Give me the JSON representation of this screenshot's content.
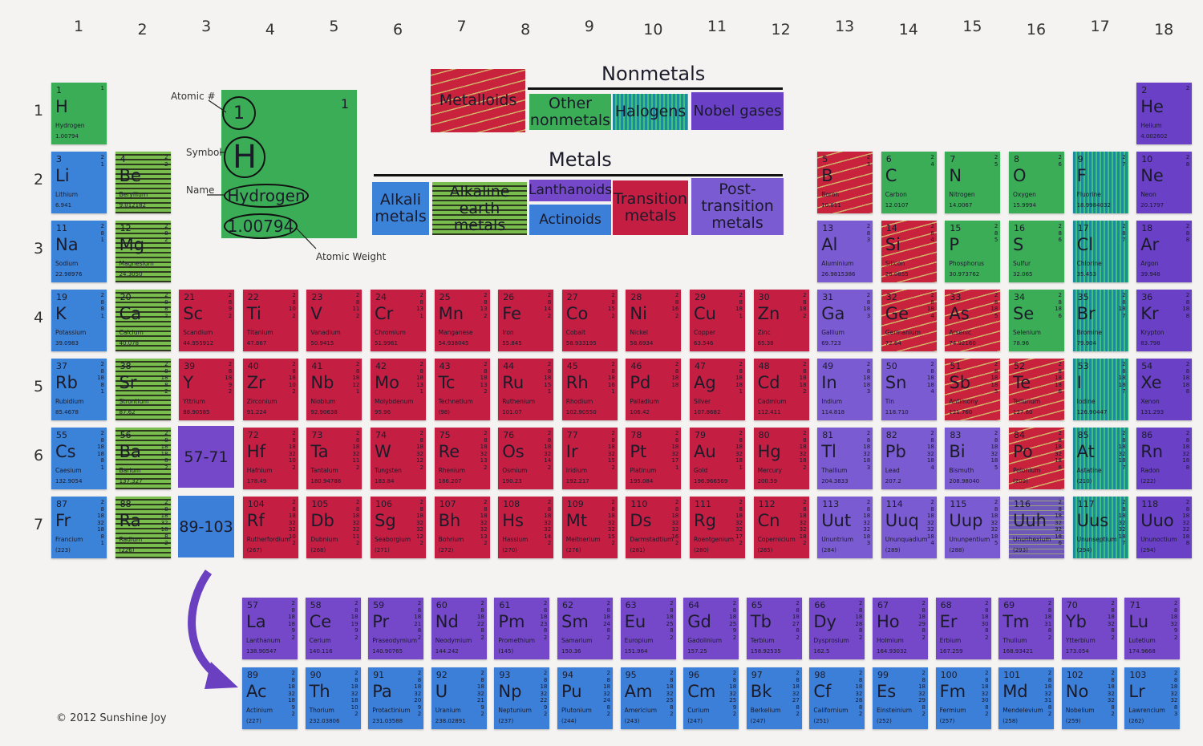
{
  "groups": [
    "1",
    "2",
    "3",
    "4",
    "5",
    "6",
    "7",
    "8",
    "9",
    "10",
    "11",
    "12",
    "13",
    "14",
    "15",
    "16",
    "17",
    "18"
  ],
  "periods": [
    "1",
    "2",
    "3",
    "4",
    "5",
    "6",
    "7"
  ],
  "legend": {
    "nonmetals_title": "Nonmetals",
    "metals_title": "Metals",
    "metalloids": "Metalloids",
    "other_nonmetals": "Other nonmetals",
    "halogens": "Halogens",
    "noble_gases": "Nobel gases",
    "alkali": "Alkali metals",
    "alkaline_earth": "Alkaline earth metals",
    "lanthanoids": "Lanthanoids",
    "actinoids": "Actinoids",
    "transition": "Transition metals",
    "post_transition": "Post-transition metals"
  },
  "key": {
    "atomic_label": "Atomic #",
    "symbol_label": "Symbol",
    "name_label": "Name",
    "weight_label": "Atomic Weight",
    "number": "1",
    "shell": "1",
    "symbol": "H",
    "name": "Hydrogen",
    "weight": "1.00794"
  },
  "placeholders": {
    "lanthanoids": "57-71",
    "actinoids": "89-103"
  },
  "copyright": "© 2012 Sunshine Joy",
  "colors": {
    "alkali": "#3b83d8",
    "transition": "#c41f43",
    "post_transition": "#7b5bd1",
    "noble": "#6a40c6",
    "other_nonmetal": "#3cad57",
    "lanthanoid": "#7548c9",
    "actinoid": "#3c7fd8"
  },
  "elements": [
    [
      1,
      "H",
      "Hydrogen",
      "1.00794",
      "1",
      "onm",
      1,
      1
    ],
    [
      2,
      "He",
      "Helium",
      "4.002602",
      "2",
      "ng",
      1,
      18
    ],
    [
      3,
      "Li",
      "Lithium",
      "6.941",
      "2 1",
      "alk",
      2,
      1
    ],
    [
      4,
      "Be",
      "Beryllium",
      "9.012182",
      "2 2",
      "ae",
      2,
      2
    ],
    [
      5,
      "B",
      "Boron",
      "10.811",
      "2 3",
      "mtl",
      2,
      13
    ],
    [
      6,
      "C",
      "Carbon",
      "12.0107",
      "2 4",
      "onm",
      2,
      14
    ],
    [
      7,
      "N",
      "Nitrogen",
      "14.0067",
      "2 5",
      "onm",
      2,
      15
    ],
    [
      8,
      "O",
      "Oxygen",
      "15.9994",
      "2 6",
      "onm",
      2,
      16
    ],
    [
      9,
      "F",
      "Fluorine",
      "18.9984032",
      "2 7",
      "hal",
      2,
      17
    ],
    [
      10,
      "Ne",
      "Neon",
      "20.1797",
      "2 8",
      "ng",
      2,
      18
    ],
    [
      11,
      "Na",
      "Sodium",
      "22.98976",
      "2 8 1",
      "alk",
      3,
      1
    ],
    [
      12,
      "Mg",
      "Magnesium",
      "24.3050",
      "2 8 2",
      "ae",
      3,
      2
    ],
    [
      13,
      "Al",
      "Aluminium",
      "26.9815386",
      "2 8 3",
      "ptm",
      3,
      13
    ],
    [
      14,
      "Si",
      "Silicon",
      "28.0855",
      "2 8 4",
      "mtl",
      3,
      14
    ],
    [
      15,
      "P",
      "Phosphorus",
      "30.973762",
      "2 8 5",
      "onm",
      3,
      15
    ],
    [
      16,
      "S",
      "Sulfur",
      "32.065",
      "2 8 6",
      "onm",
      3,
      16
    ],
    [
      17,
      "Cl",
      "Chlorine",
      "35.453",
      "2 8 7",
      "hal",
      3,
      17
    ],
    [
      18,
      "Ar",
      "Argon",
      "39.948",
      "2 8 8",
      "ng",
      3,
      18
    ],
    [
      19,
      "K",
      "Potassium",
      "39.0983",
      "2 8 8 1",
      "alk",
      4,
      1
    ],
    [
      20,
      "Ca",
      "Calcium",
      "40.078",
      "2 8 8 2",
      "ae",
      4,
      2
    ],
    [
      21,
      "Sc",
      "Scandium",
      "44.955912",
      "2 8 9 2",
      "tm",
      4,
      3
    ],
    [
      22,
      "Ti",
      "Titanium",
      "47.867",
      "2 8 10 2",
      "tm",
      4,
      4
    ],
    [
      23,
      "V",
      "Vanadium",
      "50.9415",
      "2 8 11 2",
      "tm",
      4,
      5
    ],
    [
      24,
      "Cr",
      "Chromium",
      "51.9961",
      "2 8 13 1",
      "tm",
      4,
      6
    ],
    [
      25,
      "Mn",
      "Manganese",
      "54.938045",
      "2 8 13 2",
      "tm",
      4,
      7
    ],
    [
      26,
      "Fe",
      "Iron",
      "55.845",
      "2 8 14 2",
      "tm",
      4,
      8
    ],
    [
      27,
      "Co",
      "Cobalt",
      "58.933195",
      "2 8 15 2",
      "tm",
      4,
      9
    ],
    [
      28,
      "Ni",
      "Nickel",
      "58.6934",
      "2 8 16 2",
      "tm",
      4,
      10
    ],
    [
      29,
      "Cu",
      "Copper",
      "63.546",
      "2 8 18 1",
      "tm",
      4,
      11
    ],
    [
      30,
      "Zn",
      "Zinc",
      "65.38",
      "2 8 18 2",
      "tm",
      4,
      12
    ],
    [
      31,
      "Ga",
      "Gallium",
      "69.723",
      "2 8 18 3",
      "ptm",
      4,
      13
    ],
    [
      32,
      "Ge",
      "Germanium",
      "72.64",
      "2 8 18 4",
      "mtl",
      4,
      14
    ],
    [
      33,
      "As",
      "Arsenic",
      "74.92160",
      "2 8 18 5",
      "mtl",
      4,
      15
    ],
    [
      34,
      "Se",
      "Selenium",
      "78.96",
      "2 8 18 6",
      "onm",
      4,
      16
    ],
    [
      35,
      "Br",
      "Bromine",
      "79.904",
      "2 8 18 7",
      "hal",
      4,
      17
    ],
    [
      36,
      "Kr",
      "Krypton",
      "83.798",
      "2 8 18 8",
      "ng",
      4,
      18
    ],
    [
      37,
      "Rb",
      "Rubidium",
      "85.4678",
      "2 8 18 8 1",
      "alk",
      5,
      1
    ],
    [
      38,
      "Sr",
      "Strontium",
      "87.62",
      "2 8 18 8 2",
      "ae",
      5,
      2
    ],
    [
      39,
      "Y",
      "Yttrium",
      "88.90585",
      "2 8 18 9 2",
      "tm",
      5,
      3
    ],
    [
      40,
      "Zr",
      "Zirconium",
      "91.224",
      "2 8 18 10 2",
      "tm",
      5,
      4
    ],
    [
      41,
      "Nb",
      "Niobium",
      "92.90638",
      "2 8 18 12 1",
      "tm",
      5,
      5
    ],
    [
      42,
      "Mo",
      "Molybdenum",
      "95.96",
      "2 8 18 13 1",
      "tm",
      5,
      6
    ],
    [
      43,
      "Tc",
      "Technetium",
      "(98)",
      "2 8 18 13 2",
      "tm",
      5,
      7
    ],
    [
      44,
      "Ru",
      "Ruthenium",
      "101.07",
      "2 8 18 15 1",
      "tm",
      5,
      8
    ],
    [
      45,
      "Rh",
      "Rhodium",
      "102.90550",
      "2 8 18 16 1",
      "tm",
      5,
      9
    ],
    [
      46,
      "Pd",
      "Palladium",
      "106.42",
      "2 8 18 18",
      "tm",
      5,
      10
    ],
    [
      47,
      "Ag",
      "Silver",
      "107.8682",
      "2 8 18 18 1",
      "tm",
      5,
      11
    ],
    [
      48,
      "Cd",
      "Cadmium",
      "112.411",
      "2 8 18 18 2",
      "tm",
      5,
      12
    ],
    [
      49,
      "In",
      "Indium",
      "114.818",
      "2 8 18 18 3",
      "ptm",
      5,
      13
    ],
    [
      50,
      "Sn",
      "Tin",
      "118.710",
      "2 8 18 18 4",
      "ptm",
      5,
      14
    ],
    [
      51,
      "Sb",
      "Antimony",
      "121.760",
      "2 8 18 18 5",
      "mtl",
      5,
      15
    ],
    [
      52,
      "Te",
      "Tellurium",
      "127.60",
      "2 8 18 18 6",
      "mtl",
      5,
      16
    ],
    [
      53,
      "I",
      "Iodine",
      "126.90447",
      "2 8 18 18 7",
      "hal",
      5,
      17
    ],
    [
      54,
      "Xe",
      "Xenon",
      "131.293",
      "2 8 18 18 8",
      "ng",
      5,
      18
    ],
    [
      55,
      "Cs",
      "Caesium",
      "132.9054",
      "2 8 18 18 8 1",
      "alk",
      6,
      1
    ],
    [
      56,
      "Ba",
      "Barium",
      "137.327",
      "2 8 18 18 8 2",
      "ae",
      6,
      2
    ],
    [
      72,
      "Hf",
      "Hafnium",
      "178.49",
      "2 8 18 32 10 2",
      "tm",
      6,
      4
    ],
    [
      73,
      "Ta",
      "Tantalum",
      "180.94788",
      "2 8 18 32 11 2",
      "tm",
      6,
      5
    ],
    [
      74,
      "W",
      "Tungsten",
      "183.84",
      "2 8 18 32 12 2",
      "tm",
      6,
      6
    ],
    [
      75,
      "Re",
      "Rhenium",
      "186.207",
      "2 8 18 32 13 2",
      "tm",
      6,
      7
    ],
    [
      76,
      "Os",
      "Osmium",
      "190.23",
      "2 8 18 32 14 2",
      "tm",
      6,
      8
    ],
    [
      77,
      "Ir",
      "Iridium",
      "192.217",
      "2 8 18 32 15 2",
      "tm",
      6,
      9
    ],
    [
      78,
      "Pt",
      "Platinum",
      "195.084",
      "2 8 18 32 17 1",
      "tm",
      6,
      10
    ],
    [
      79,
      "Au",
      "Gold",
      "196.966569",
      "2 8 18 32 18 1",
      "tm",
      6,
      11
    ],
    [
      80,
      "Hg",
      "Mercury",
      "200.59",
      "2 8 18 32 18 2",
      "tm",
      6,
      12
    ],
    [
      81,
      "Tl",
      "Thallium",
      "204.3833",
      "2 8 18 32 18 3",
      "ptm",
      6,
      13
    ],
    [
      82,
      "Pb",
      "Lead",
      "207.2",
      "2 8 18 32 18 4",
      "ptm",
      6,
      14
    ],
    [
      83,
      "Bi",
      "Bismuth",
      "208.98040",
      "2 8 18 32 18 5",
      "ptm",
      6,
      15
    ],
    [
      84,
      "Po",
      "Polonium",
      "(209)",
      "2 8 18 32 18 6",
      "mtl",
      6,
      16
    ],
    [
      85,
      "At",
      "Astatine",
      "(210)",
      "2 8 18 32 18 7",
      "hal",
      6,
      17
    ],
    [
      86,
      "Rn",
      "Radon",
      "(222)",
      "2 8 18 32 18 8",
      "ng",
      6,
      18
    ],
    [
      87,
      "Fr",
      "Francium",
      "(223)",
      "2 8 18 32 18 8 1",
      "alk",
      7,
      1
    ],
    [
      88,
      "Ra",
      "Radium",
      "(226)",
      "2 8 18 32 18 8 2",
      "ae",
      7,
      2
    ],
    [
      104,
      "Rf",
      "Rutherfordium",
      "(267)",
      "2 8 18 32 32 10 2",
      "tm",
      7,
      4
    ],
    [
      105,
      "Db",
      "Dubnium",
      "(268)",
      "2 8 18 32 32 11 2",
      "tm",
      7,
      5
    ],
    [
      106,
      "Sg",
      "Seaborgium",
      "(271)",
      "2 8 18 32 32 12 2",
      "tm",
      7,
      6
    ],
    [
      107,
      "Bh",
      "Bohrium",
      "(272)",
      "2 8 18 32 32 13 2",
      "tm",
      7,
      7
    ],
    [
      108,
      "Hs",
      "Hassium",
      "(270)",
      "2 8 18 32 32 14 2",
      "tm",
      7,
      8
    ],
    [
      109,
      "Mt",
      "Meitnerium",
      "(276)",
      "2 8 18 32 32 15 2",
      "tm",
      7,
      9
    ],
    [
      110,
      "Ds",
      "Darmstadtium",
      "(281)",
      "2 8 18 32 32 16 2",
      "tm",
      7,
      10
    ],
    [
      111,
      "Rg",
      "Roentgenium",
      "(280)",
      "2 8 18 32 32 17 2",
      "tm",
      7,
      11
    ],
    [
      112,
      "Cn",
      "Copernicium",
      "(285)",
      "2 8 18 32 32 18 2",
      "tm",
      7,
      12
    ],
    [
      113,
      "Uut",
      "Ununtrium",
      "(284)",
      "2 8 18 32 32 18 3",
      "ptm",
      7,
      13
    ],
    [
      114,
      "Uuq",
      "Ununquadium",
      "(289)",
      "2 8 18 32 32 18 4",
      "ptm",
      7,
      14
    ],
    [
      115,
      "Uup",
      "Ununpentium",
      "(288)",
      "2 8 18 32 32 18 5",
      "ptm",
      7,
      15
    ],
    [
      116,
      "Uuh",
      "Ununhexium",
      "(293)",
      "2 8 18 32 32 18 6",
      "uuh",
      7,
      16
    ],
    [
      117,
      "Uus",
      "Ununseptium",
      "(294)",
      "2 8 18 32 32 18 7",
      "hal",
      7,
      17
    ],
    [
      118,
      "Uuo",
      "Ununoctium",
      "(294)",
      "2 8 18 32 32 18 8",
      "ng",
      7,
      18
    ]
  ],
  "lanthanoids": [
    [
      57,
      "La",
      "Lanthanum",
      "138.90547",
      "2 8 18 18 9 2",
      "lan"
    ],
    [
      58,
      "Ce",
      "Cerium",
      "140.116",
      "2 8 18 19 9 2",
      "lan"
    ],
    [
      59,
      "Pr",
      "Praseodymium",
      "140.90765",
      "2 8 18 21 8 2",
      "lan"
    ],
    [
      60,
      "Nd",
      "Neodymium",
      "144.242",
      "2 8 18 22 8 2",
      "lan"
    ],
    [
      61,
      "Pm",
      "Promethium",
      "(145)",
      "2 8 18 23 8 2",
      "lan"
    ],
    [
      62,
      "Sm",
      "Samarium",
      "150.36",
      "2 8 18 24 8 2",
      "lan"
    ],
    [
      63,
      "Eu",
      "Europium",
      "151.964",
      "2 8 18 25 8 2",
      "lan"
    ],
    [
      64,
      "Gd",
      "Gadolinium",
      "157.25",
      "2 8 18 25 9 2",
      "lan"
    ],
    [
      65,
      "Tb",
      "Terbium",
      "158.92535",
      "2 8 18 27 8 2",
      "lan"
    ],
    [
      66,
      "Dy",
      "Dysprosium",
      "162.5",
      "2 8 18 28 8 2",
      "lan"
    ],
    [
      67,
      "Ho",
      "Holmium",
      "164.93032",
      "2 8 18 29 8 2",
      "lan"
    ],
    [
      68,
      "Er",
      "Erbium",
      "167.259",
      "2 8 18 30 8 2",
      "lan"
    ],
    [
      69,
      "Tm",
      "Thulium",
      "168.93421",
      "2 8 18 31 8 2",
      "lan"
    ],
    [
      70,
      "Yb",
      "Ytterbium",
      "173.054",
      "2 8 18 32 8 2",
      "lan"
    ],
    [
      71,
      "Lu",
      "Lutetium",
      "174.9668",
      "2 8 18 32 9 2",
      "lan"
    ]
  ],
  "actinoids": [
    [
      89,
      "Ac",
      "Actinium",
      "(227)",
      "2 8 18 32 18 9 2",
      "act"
    ],
    [
      90,
      "Th",
      "Thorium",
      "232.03806",
      "2 8 18 32 18 10 2",
      "act"
    ],
    [
      91,
      "Pa",
      "Protactinium",
      "231.03588",
      "2 8 18 32 20 9 2",
      "act"
    ],
    [
      92,
      "U",
      "Uranium",
      "238.02891",
      "2 8 18 32 21 9 2",
      "act"
    ],
    [
      93,
      "Np",
      "Neptunium",
      "(237)",
      "2 8 18 32 22 9 2",
      "act"
    ],
    [
      94,
      "Pu",
      "Plutonium",
      "(244)",
      "2 8 18 32 24 8 2",
      "act"
    ],
    [
      95,
      "Am",
      "Americium",
      "(243)",
      "2 8 18 32 25 8 2",
      "act"
    ],
    [
      96,
      "Cm",
      "Curium",
      "(247)",
      "2 8 18 32 25 9 2",
      "act"
    ],
    [
      97,
      "Bk",
      "Berkelium",
      "(247)",
      "2 8 18 32 27 8 2",
      "act"
    ],
    [
      98,
      "Cf",
      "Californium",
      "(251)",
      "2 8 18 32 28 8 2",
      "act"
    ],
    [
      99,
      "Es",
      "Einsteinium",
      "(252)",
      "2 8 18 32 29 8 2",
      "act"
    ],
    [
      100,
      "Fm",
      "Fermium",
      "(257)",
      "2 8 18 32 30 8 2",
      "act"
    ],
    [
      101,
      "Md",
      "Mendelevium",
      "(258)",
      "2 8 18 32 31 8 2",
      "act"
    ],
    [
      102,
      "No",
      "Nobelium",
      "(259)",
      "2 8 18 32 32 8 2",
      "act"
    ],
    [
      103,
      "Lr",
      "Lawrencium",
      "(262)",
      "2 8 18 32 32 8 3",
      "act"
    ]
  ]
}
